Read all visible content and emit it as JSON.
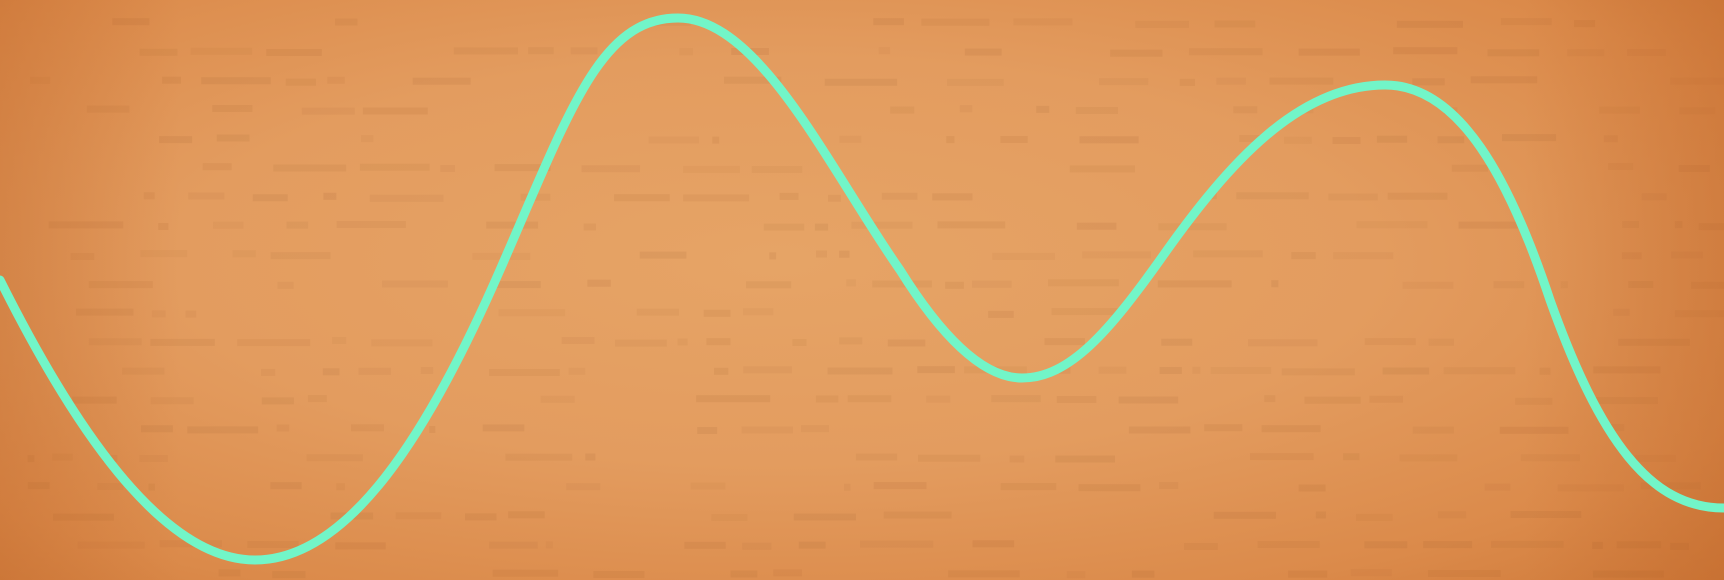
{
  "scene": {
    "background_color": "#e39a5e",
    "line_color": "#72f5c8",
    "texture_color": "#8a4a1c"
  }
}
